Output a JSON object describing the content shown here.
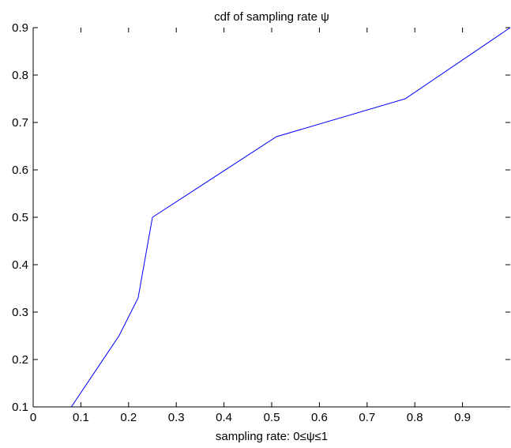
{
  "chart_data": {
    "type": "line",
    "title": "cdf of sampling rate ψ",
    "xlabel": "sampling rate: 0≤ψ≤1",
    "ylabel": "",
    "xlim": [
      0,
      1
    ],
    "ylim": [
      0.1,
      0.9
    ],
    "x_ticks": [
      0,
      0.1,
      0.2,
      0.3,
      0.4,
      0.5,
      0.6,
      0.7,
      0.8,
      0.9
    ],
    "x_tick_labels": [
      "0",
      "0.1",
      "0.2",
      "0.3",
      "0.4",
      "0.5",
      "0.6",
      "0.7",
      "0.8",
      "0.9"
    ],
    "y_ticks": [
      0.1,
      0.2,
      0.3,
      0.4,
      0.5,
      0.6,
      0.7,
      0.8,
      0.9
    ],
    "y_tick_labels": [
      "0.1",
      "0.2",
      "0.3",
      "0.4",
      "0.5",
      "0.6",
      "0.7",
      "0.8",
      "0.9"
    ],
    "grid": false,
    "series": [
      {
        "color": "#0000ff",
        "x": [
          0.08,
          0.18,
          0.22,
          0.25,
          0.51,
          0.78,
          1.0
        ],
        "y": [
          0.1,
          0.25,
          0.33,
          0.5,
          0.67,
          0.75,
          0.9
        ]
      }
    ]
  }
}
